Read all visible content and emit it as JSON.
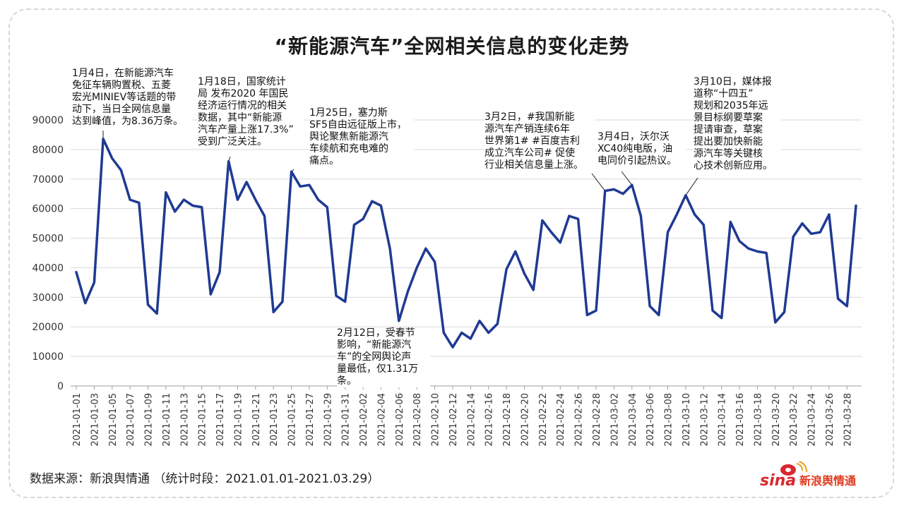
{
  "title": "“新能源汽车”全网相关信息的变化走势",
  "source": "数据来源：新浪舆情通 （统计时段：2021.01.01-2021.03.29）",
  "logo": {
    "brand": "sina",
    "text": "新浪舆情通"
  },
  "colors": {
    "line": "#1f3a93",
    "grid": "#d9d9d9",
    "axis": "#9e9e9e",
    "logo_red": "#d9282f",
    "logo_text": "#e03a1e"
  },
  "annotations": [
    {
      "id": "a1",
      "lines": [
        "1月4日，在新能源汽车",
        "免征车辆购置税、五菱",
        "宏光MINIEV等话题的带",
        "动下，当日全网信息量",
        "达到峰值，为8.36万条。"
      ]
    },
    {
      "id": "a2",
      "lines": [
        "1月18日，国家统计",
        "局 发布2020 年国民",
        "经济运行情况的相关",
        "数据，其中“新能源",
        "汽车产量上涨17.3%”",
        "受到广泛关注。"
      ]
    },
    {
      "id": "a3",
      "lines": [
        "1月25日，塞力斯",
        "SF5自由远征版上市，",
        "舆论聚焦新能源汽",
        "车续航和充电难的",
        "痛点。"
      ]
    },
    {
      "id": "a4",
      "lines": [
        "2月12日，受春节",
        "影响，“新能源汽",
        "车”的全网舆论声",
        "量最低，仅1.31万",
        "条。"
      ]
    },
    {
      "id": "a5",
      "lines": [
        "3月2日，#我国新能",
        "源汽车产销连续6年",
        "世界第1# #百度吉利",
        "成立汽车公司# 促使",
        "行业相关信息量上涨。"
      ]
    },
    {
      "id": "a6",
      "lines": [
        "3月4日，沃尔沃",
        "XC40纯电版，油",
        "电同价引起热议。"
      ]
    },
    {
      "id": "a7",
      "lines": [
        "3月10日，媒体报",
        "道称“十四五”",
        "规划和2035年远",
        "景目标纲要草案",
        "提请审查，草案",
        "提出要加快新能",
        "源汽车等关键核",
        "心技术创新应用。"
      ]
    }
  ],
  "chart_data": {
    "type": "line",
    "title": "“新能源汽车”全网相关信息的变化走势",
    "xlabel": "",
    "ylabel": "",
    "ylim": [
      0,
      90000
    ],
    "yticks": [
      0,
      10000,
      20000,
      30000,
      40000,
      50000,
      60000,
      70000,
      80000,
      90000
    ],
    "grid": "horizontal",
    "x_tick_labels": [
      "2021-01-01",
      "2021-01-03",
      "2021-01-05",
      "2021-01-07",
      "2021-01-09",
      "2021-01-11",
      "2021-01-13",
      "2021-01-15",
      "2021-01-17",
      "2021-01-19",
      "2021-01-21",
      "2021-01-23",
      "2021-01-25",
      "2021-01-27",
      "2021-01-29",
      "2021-01-31",
      "2021-02-02",
      "2021-02-04",
      "2021-02-06",
      "2021-02-08",
      "2021-02-10",
      "2021-02-12",
      "2021-02-14",
      "2021-02-16",
      "2021-02-18",
      "2021-02-20",
      "2021-02-22",
      "2021-02-24",
      "2021-02-26",
      "2021-02-28",
      "2021-03-02",
      "2021-03-04",
      "2021-03-06",
      "2021-03-08",
      "2021-03-10",
      "2021-03-12",
      "2021-03-14",
      "2021-03-16",
      "2021-03-18",
      "2021-03-20",
      "2021-03-22",
      "2021-03-24",
      "2021-03-26",
      "2021-03-28"
    ],
    "series": [
      {
        "values": [
          38500,
          28000,
          35000,
          83600,
          77000,
          73000,
          63000,
          62000,
          27500,
          24500,
          65500,
          59000,
          63000,
          61000,
          60500,
          31000,
          38500,
          76000,
          63000,
          69000,
          63000,
          57500,
          25000,
          28500,
          72500,
          67500,
          68000,
          63000,
          60500,
          30500,
          28500,
          54500,
          56500,
          62500,
          61000,
          46500,
          22000,
          32000,
          40000,
          46500,
          42000,
          18000,
          13100,
          18000,
          16000,
          22000,
          18000,
          21000,
          39500,
          45500,
          38000,
          32500,
          56000,
          52000,
          48500,
          57500,
          56500,
          24000,
          25500,
          66000,
          66500,
          65000,
          68000,
          57500,
          27000,
          24000,
          52000,
          58000,
          64500,
          58000,
          54500,
          25500,
          23000,
          55500,
          49000,
          46500,
          45500,
          45000,
          21500,
          25000,
          50500,
          55000,
          51500,
          52000,
          58000,
          29500,
          27000,
          61000
        ]
      }
    ]
  }
}
